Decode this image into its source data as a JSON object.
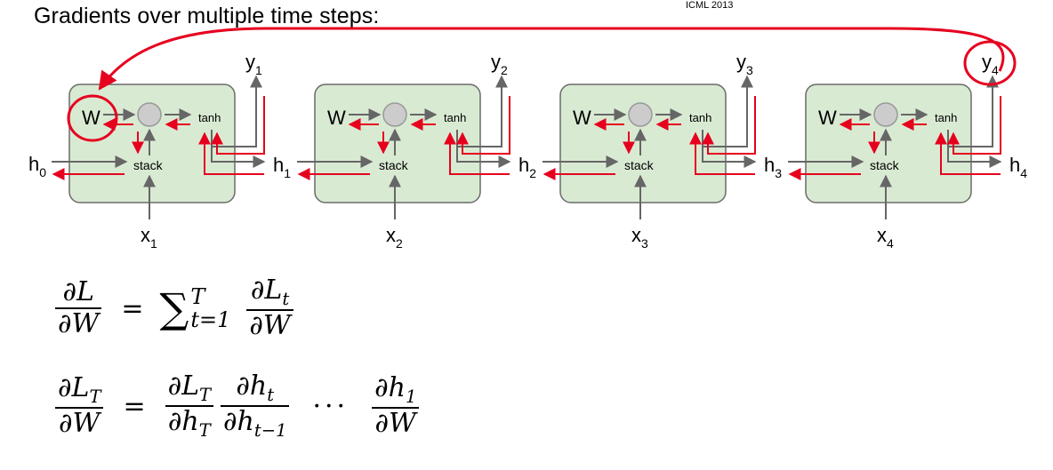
{
  "header": {
    "title": "Gradients over multiple time steps:",
    "citation": "ICML 2013"
  },
  "diagram": {
    "cells": [
      {
        "weight_label": "W",
        "activation_label": "tanh",
        "op_label": "stack",
        "hidden_in": {
          "base": "h",
          "sub": "0"
        },
        "hidden_out": {
          "base": "h",
          "sub": "1"
        },
        "input": {
          "base": "x",
          "sub": "1"
        },
        "output": {
          "base": "y",
          "sub": "1"
        }
      },
      {
        "weight_label": "W",
        "activation_label": "tanh",
        "op_label": "stack",
        "hidden_in": {
          "base": "h",
          "sub": "1"
        },
        "hidden_out": {
          "base": "h",
          "sub": "2"
        },
        "input": {
          "base": "x",
          "sub": "2"
        },
        "output": {
          "base": "y",
          "sub": "2"
        }
      },
      {
        "weight_label": "W",
        "activation_label": "tanh",
        "op_label": "stack",
        "hidden_in": {
          "base": "h",
          "sub": "2"
        },
        "hidden_out": {
          "base": "h",
          "sub": "3"
        },
        "input": {
          "base": "x",
          "sub": "3"
        },
        "output": {
          "base": "y",
          "sub": "3"
        }
      },
      {
        "weight_label": "W",
        "activation_label": "tanh",
        "op_label": "stack",
        "hidden_in": {
          "base": "h",
          "sub": "3"
        },
        "hidden_out": {
          "base": "h",
          "sub": "4"
        },
        "input": {
          "base": "x",
          "sub": "4"
        },
        "output": {
          "base": "y",
          "sub": "4"
        }
      }
    ],
    "colors": {
      "cell_fill": "#d9ead3",
      "cell_stroke": "#6b6b6b",
      "forward_arrow": "#666666",
      "gradient_arrow": "#e6001e",
      "node_fill": "#cccccc"
    }
  },
  "equations": {
    "eq1": {
      "lhs_num": "∂L",
      "lhs_den": "∂W",
      "equals": "=",
      "sum_sign": "∑",
      "sum_upper": "T",
      "sum_lower": "t=1",
      "rhs_num": "∂L",
      "rhs_num_sub": "t",
      "rhs_den": "∂W"
    },
    "eq2": {
      "lhs_num": "∂L",
      "lhs_num_sub": "T",
      "lhs_den": "∂W",
      "equals": "=",
      "f1_num": "∂L",
      "f1_num_sub": "T",
      "f1_den": "∂h",
      "f1_den_sub": "T",
      "f2_num": "∂h",
      "f2_num_sub": "t",
      "f2_den": "∂h",
      "f2_den_sub": "t−1",
      "dots": "···",
      "f3_num": "∂h",
      "f3_num_sub": "1",
      "f3_den": "∂W"
    }
  }
}
